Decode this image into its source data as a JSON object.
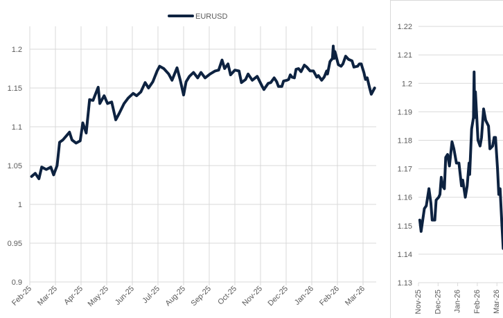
{
  "colors": {
    "line": "#0d2240",
    "grid": "#d9d9d9",
    "text": "#595959",
    "frame": "#d9d9d9"
  },
  "chart_data": [
    {
      "type": "line",
      "title": "",
      "legend": {
        "position": "top",
        "entries": [
          "EURUSD"
        ]
      },
      "xlabel": "",
      "ylabel": "",
      "grid": true,
      "ylim": [
        0.9,
        1.225
      ],
      "yticks": [
        0.9,
        0.95,
        1,
        1.05,
        1.1,
        1.15,
        1.2
      ],
      "ytick_labels": [
        "0.9",
        "0.95",
        "1",
        "1.05",
        "1.1",
        "1.15",
        "1.2"
      ],
      "xticks": [
        "2025-02-01",
        "2025-03-01",
        "2025-04-01",
        "2025-05-01",
        "2025-06-01",
        "2025-07-01",
        "2025-08-01",
        "2025-09-01",
        "2025-10-01",
        "2025-11-01",
        "2025-12-01",
        "2026-01-01",
        "2026-02-01",
        "2026-03-01"
      ],
      "xtick_labels": [
        "Feb-25",
        "Mar-25",
        "Apr-25",
        "May-25",
        "Jun-25",
        "Jul-25",
        "Aug-25",
        "Sep-25",
        "Oct-25",
        "Nov-25",
        "Dec-25",
        "Jan-26",
        "Feb-26",
        "Mar-26"
      ],
      "series": [
        {
          "name": "EURUSD",
          "points": [
            [
              "2025-02-03",
              1.036
            ],
            [
              "2025-02-07",
              1.04
            ],
            [
              "2025-02-11",
              1.033
            ],
            [
              "2025-02-14",
              1.048
            ],
            [
              "2025-02-19",
              1.045
            ],
            [
              "2025-02-24",
              1.048
            ],
            [
              "2025-02-27",
              1.038
            ],
            [
              "2025-03-03",
              1.05
            ],
            [
              "2025-03-06",
              1.08
            ],
            [
              "2025-03-10",
              1.083
            ],
            [
              "2025-03-14",
              1.088
            ],
            [
              "2025-03-18",
              1.093
            ],
            [
              "2025-03-21",
              1.083
            ],
            [
              "2025-03-26",
              1.079
            ],
            [
              "2025-03-31",
              1.082
            ],
            [
              "2025-04-03",
              1.105
            ],
            [
              "2025-04-07",
              1.092
            ],
            [
              "2025-04-11",
              1.135
            ],
            [
              "2025-04-15",
              1.134
            ],
            [
              "2025-04-21",
              1.151
            ],
            [
              "2025-04-23",
              1.13
            ],
            [
              "2025-04-28",
              1.14
            ],
            [
              "2025-05-02",
              1.13
            ],
            [
              "2025-05-07",
              1.132
            ],
            [
              "2025-05-12",
              1.109
            ],
            [
              "2025-05-16",
              1.117
            ],
            [
              "2025-05-22",
              1.13
            ],
            [
              "2025-05-27",
              1.137
            ],
            [
              "2025-06-02",
              1.143
            ],
            [
              "2025-06-06",
              1.14
            ],
            [
              "2025-06-11",
              1.145
            ],
            [
              "2025-06-16",
              1.157
            ],
            [
              "2025-06-20",
              1.15
            ],
            [
              "2025-06-25",
              1.158
            ],
            [
              "2025-06-30",
              1.172
            ],
            [
              "2025-07-03",
              1.178
            ],
            [
              "2025-07-08",
              1.175
            ],
            [
              "2025-07-14",
              1.168
            ],
            [
              "2025-07-18",
              1.16
            ],
            [
              "2025-07-24",
              1.176
            ],
            [
              "2025-07-28",
              1.16
            ],
            [
              "2025-08-01",
              1.141
            ],
            [
              "2025-08-04",
              1.158
            ],
            [
              "2025-08-08",
              1.165
            ],
            [
              "2025-08-13",
              1.17
            ],
            [
              "2025-08-18",
              1.163
            ],
            [
              "2025-08-22",
              1.17
            ],
            [
              "2025-08-27",
              1.163
            ],
            [
              "2025-09-02",
              1.168
            ],
            [
              "2025-09-08",
              1.172
            ],
            [
              "2025-09-12",
              1.173
            ],
            [
              "2025-09-16",
              1.186
            ],
            [
              "2025-09-19",
              1.175
            ],
            [
              "2025-09-23",
              1.181
            ],
            [
              "2025-09-26",
              1.167
            ],
            [
              "2025-10-01",
              1.173
            ],
            [
              "2025-10-06",
              1.172
            ],
            [
              "2025-10-09",
              1.157
            ],
            [
              "2025-10-14",
              1.161
            ],
            [
              "2025-10-17",
              1.168
            ],
            [
              "2025-10-22",
              1.16
            ],
            [
              "2025-10-28",
              1.165
            ],
            [
              "2025-11-03",
              1.152
            ],
            [
              "2025-11-05",
              1.148
            ],
            [
              "2025-11-10",
              1.156
            ],
            [
              "2025-11-13",
              1.157
            ],
            [
              "2025-11-17",
              1.163
            ],
            [
              "2025-11-20",
              1.158
            ],
            [
              "2025-11-22",
              1.152
            ],
            [
              "2025-11-26",
              1.152
            ],
            [
              "2025-11-28",
              1.159
            ],
            [
              "2025-12-02",
              1.16
            ],
            [
              "2025-12-04",
              1.161
            ],
            [
              "2025-12-06",
              1.167
            ],
            [
              "2025-12-08",
              1.164
            ],
            [
              "2025-12-11",
              1.163
            ],
            [
              "2025-12-13",
              1.174
            ],
            [
              "2025-12-16",
              1.175
            ],
            [
              "2025-12-19",
              1.171
            ],
            [
              "2025-12-23",
              1.1795
            ],
            [
              "2025-12-26",
              1.177
            ],
            [
              "2025-12-30",
              1.172
            ],
            [
              "2026-01-03",
              1.172
            ],
            [
              "2026-01-07",
              1.164
            ],
            [
              "2026-01-09",
              1.166
            ],
            [
              "2026-01-13",
              1.16
            ],
            [
              "2026-01-16",
              1.164
            ],
            [
              "2026-01-19",
              1.172
            ],
            [
              "2026-01-20",
              1.168
            ],
            [
              "2026-01-23",
              1.184
            ],
            [
              "2026-01-26",
              1.188
            ],
            [
              "2026-01-27",
              1.204
            ],
            [
              "2026-01-28",
              1.188
            ],
            [
              "2026-01-29",
              1.197
            ],
            [
              "2026-02-02",
              1.18
            ],
            [
              "2026-02-05",
              1.178
            ],
            [
              "2026-02-07",
              1.181
            ],
            [
              "2026-02-10",
              1.191
            ],
            [
              "2026-02-13",
              1.187
            ],
            [
              "2026-02-17",
              1.185
            ],
            [
              "2026-02-19",
              1.177
            ],
            [
              "2026-02-23",
              1.178
            ],
            [
              "2026-02-25",
              1.181
            ],
            [
              "2026-02-27",
              1.181
            ],
            [
              "2026-03-02",
              1.17
            ],
            [
              "2026-03-04",
              1.161
            ],
            [
              "2026-03-06",
              1.163
            ],
            [
              "2026-03-09",
              1.15
            ],
            [
              "2026-03-11",
              1.142
            ],
            [
              "2026-03-15",
              1.15
            ]
          ]
        }
      ]
    },
    {
      "type": "line",
      "title": "",
      "xlabel": "",
      "ylabel": "",
      "grid": true,
      "ylim": [
        1.13,
        1.22
      ],
      "yticks": [
        1.13,
        1.14,
        1.15,
        1.16,
        1.17,
        1.18,
        1.19,
        1.2,
        1.21,
        1.22
      ],
      "ytick_labels": [
        "1.13",
        "1.14",
        "1.15",
        "1.16",
        "1.17",
        "1.18",
        "1.19",
        "1.2",
        "1.21",
        "1.22"
      ],
      "xticks": [
        "2025-11-01",
        "2025-12-01",
        "2026-01-01",
        "2026-02-01",
        "2026-03-01"
      ],
      "xtick_labels": [
        "Nov-25",
        "Dec-25",
        "Jan-26",
        "Feb-26",
        "Mar-26"
      ],
      "series_ref": "EURUSD from Nov-25"
    }
  ]
}
